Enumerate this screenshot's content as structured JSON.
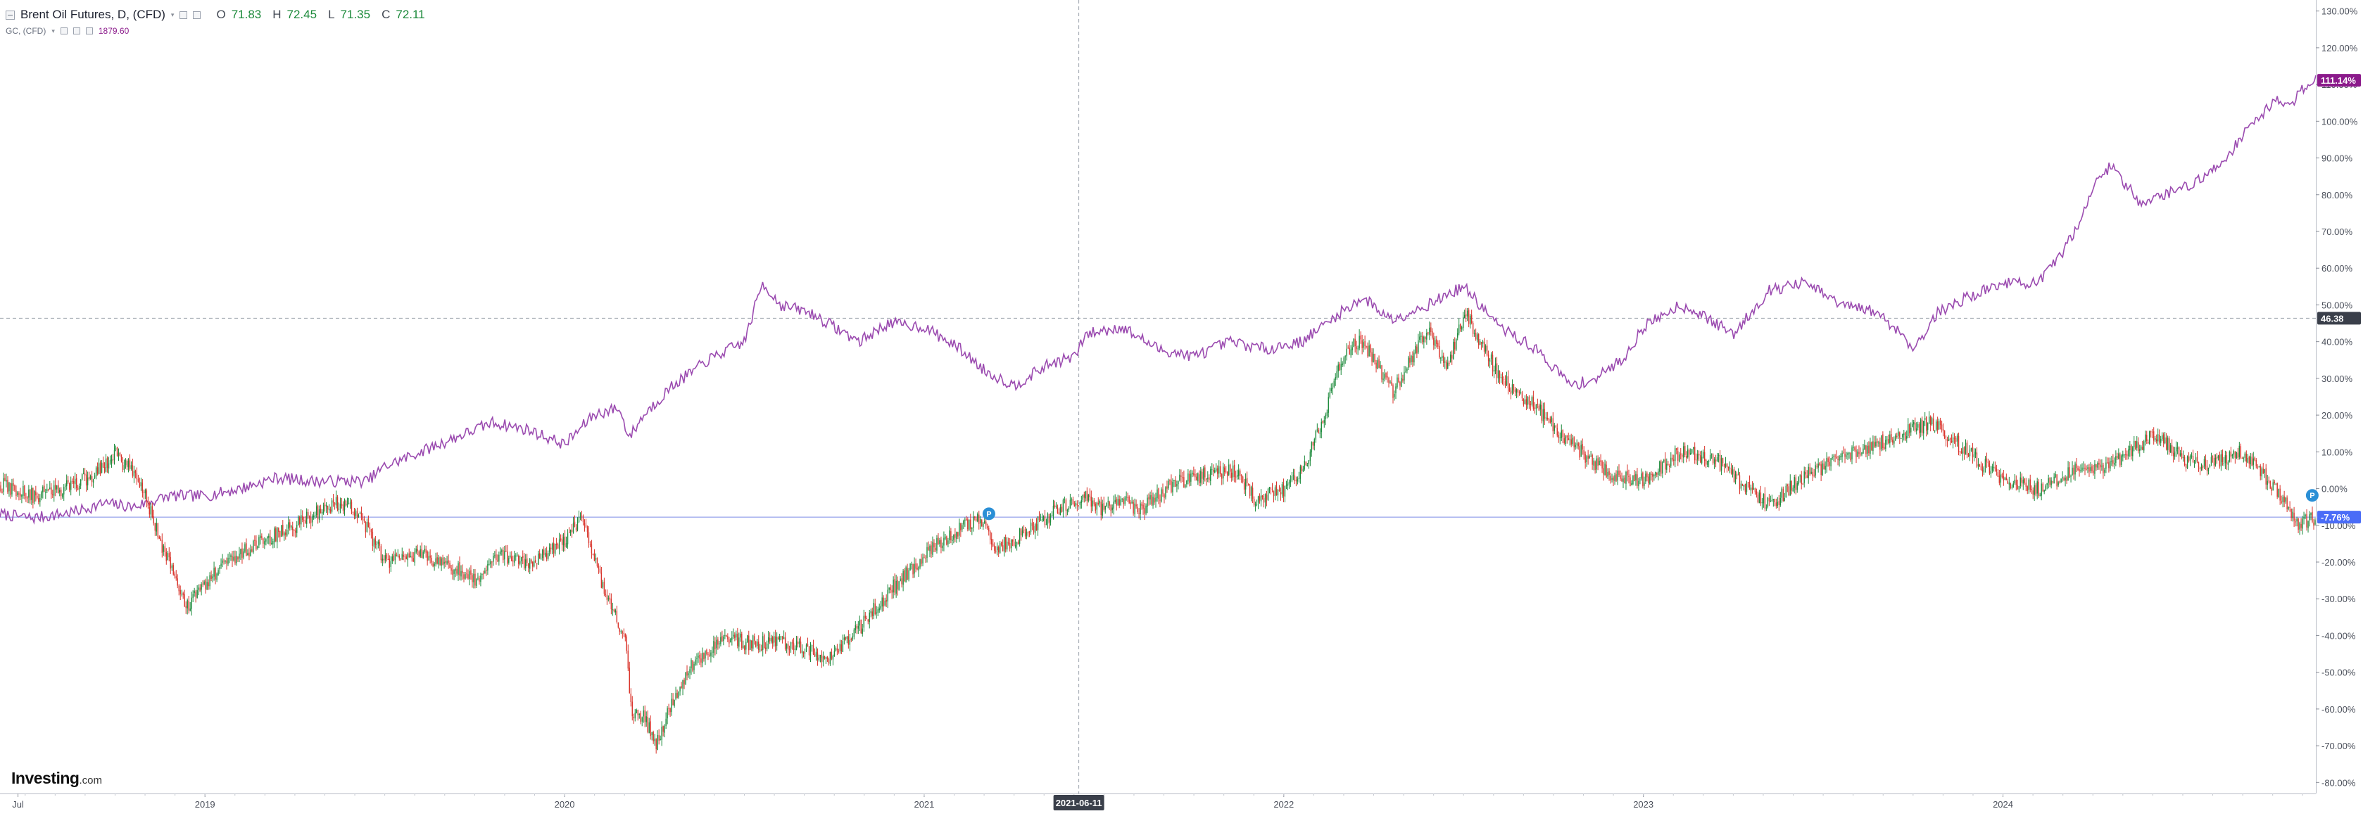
{
  "legend": {
    "symbol": "Brent Oil Futures, D, (CFD)",
    "caret": "▾",
    "open_label": "O",
    "open": "71.83",
    "high_label": "H",
    "high": "72.45",
    "low_label": "L",
    "low": "71.35",
    "close_label": "C",
    "close": "72.11",
    "compare_symbol": "GC, (CFD)",
    "compare_value": "1879.60"
  },
  "logo": {
    "brand": "Investing",
    "suffix": ".com"
  },
  "crosshair": {
    "date_label": "2021-06-11",
    "y_value": 46.38,
    "y_label": "46.38"
  },
  "colors": {
    "up": "#1c8a3b",
    "down": "#d9342b",
    "compare_line": "#9b4bb0",
    "baseline": "#5b6ee1",
    "compare_badge": "#8b1a8b",
    "baseline_badge": "#4a6cf7",
    "cross_badge": "#3a3f4a"
  },
  "chart_data": [
    {
      "type": "line",
      "title": "Brent Oil Futures, D, (CFD)",
      "y_format": "percent",
      "ylim": [
        -83,
        133
      ],
      "y_ticks": [
        130,
        120,
        110,
        100,
        90,
        80,
        70,
        60,
        50,
        40,
        30,
        20,
        10,
        0,
        -10,
        -20,
        -30,
        -40,
        -50,
        -60,
        -70,
        -80
      ],
      "y_tick_labels": [
        "130.00%",
        "120.00%",
        "110.00%",
        "100.00%",
        "90.00%",
        "80.00%",
        "70.00%",
        "60.00%",
        "50.00%",
        "40.00%",
        "30.00%",
        "20.00%",
        "10.00%",
        "0.00%",
        "-10.00%",
        "-20.00%",
        "-30.00%",
        "-40.00%",
        "-50.00%",
        "-60.00%",
        "-70.00%",
        "-80.00%"
      ],
      "xlim": [
        2018.43,
        2024.87
      ],
      "x_ticks": [
        2018.48,
        2019.0,
        2020.0,
        2021.0,
        2022.0,
        2023.0,
        2024.0
      ],
      "x_tick_labels": [
        "Jul",
        "2019",
        "2020",
        "2021",
        "2022",
        "2023",
        "2024"
      ],
      "grid": false,
      "series": [
        {
          "name": "Brent Oil Futures, D, (CFD)",
          "style": "candles",
          "last_value": -7.76,
          "last_label": "-7.76%",
          "x": [
            2018.43,
            2018.52,
            2018.6,
            2018.68,
            2018.75,
            2018.82,
            2018.88,
            2018.95,
            2019.05,
            2019.15,
            2019.25,
            2019.35,
            2019.42,
            2019.5,
            2019.6,
            2019.7,
            2019.75,
            2019.8,
            2019.9,
            2020.0,
            2020.05,
            2020.1,
            2020.17,
            2020.18,
            2020.22,
            2020.25,
            2020.3,
            2020.35,
            2020.4,
            2020.45,
            2020.5,
            2020.6,
            2020.68,
            2020.72,
            2020.8,
            2020.85,
            2020.92,
            2021.0,
            2021.08,
            2021.15,
            2021.2,
            2021.25,
            2021.3,
            2021.4,
            2021.45,
            2021.5,
            2021.55,
            2021.6,
            2021.7,
            2021.8,
            2021.86,
            2021.92,
            2022.0,
            2022.05,
            2022.1,
            2022.17,
            2022.22,
            2022.3,
            2022.4,
            2022.45,
            2022.5,
            2022.6,
            2022.7,
            2022.8,
            2022.9,
            2023.0,
            2023.1,
            2023.2,
            2023.25,
            2023.35,
            2023.45,
            2023.55,
            2023.65,
            2023.72,
            2023.8,
            2023.9,
            2024.0,
            2024.1,
            2024.2,
            2024.28,
            2024.35,
            2024.42,
            2024.5,
            2024.55,
            2024.65,
            2024.72,
            2024.78,
            2024.82,
            2024.86
          ],
          "values": [
            1,
            -2,
            0,
            3,
            9,
            2,
            -16,
            -32,
            -20,
            -15,
            -10,
            -4,
            -6,
            -20,
            -18,
            -22,
            -25,
            -18,
            -20,
            -14,
            -8,
            -25,
            -42,
            -60,
            -62,
            -70,
            -58,
            -48,
            -44,
            -40,
            -42,
            -42,
            -44,
            -48,
            -40,
            -34,
            -26,
            -18,
            -12,
            -8,
            -16,
            -14,
            -10,
            -4,
            -2,
            -6,
            -3,
            -6,
            2,
            4,
            5,
            -3,
            0,
            5,
            17,
            38,
            40,
            26,
            44,
            32,
            48,
            30,
            22,
            12,
            4,
            2,
            10,
            8,
            3,
            -5,
            4,
            8,
            12,
            15,
            18,
            10,
            2,
            0,
            5,
            5,
            10,
            15,
            8,
            6,
            10,
            4,
            -3,
            -10,
            -8
          ]
        },
        {
          "name": "GC, (CFD)",
          "style": "line",
          "last_value": 111.14,
          "last_label": "111.14%",
          "x": [
            2018.43,
            2018.52,
            2018.6,
            2018.65,
            2018.72,
            2018.8,
            2018.9,
            2019.0,
            2019.1,
            2019.2,
            2019.3,
            2019.4,
            2019.45,
            2019.5,
            2019.6,
            2019.7,
            2019.8,
            2019.9,
            2020.0,
            2020.08,
            2020.15,
            2020.18,
            2020.22,
            2020.3,
            2020.4,
            2020.5,
            2020.55,
            2020.6,
            2020.68,
            2020.75,
            2020.82,
            2020.9,
            2021.0,
            2021.1,
            2021.17,
            2021.25,
            2021.35,
            2021.42,
            2021.45,
            2021.55,
            2021.65,
            2021.75,
            2021.85,
            2021.95,
            2022.05,
            2022.16,
            2022.22,
            2022.3,
            2022.4,
            2022.5,
            2022.6,
            2022.7,
            2022.8,
            2022.87,
            2022.95,
            2023.0,
            2023.1,
            2023.15,
            2023.25,
            2023.35,
            2023.45,
            2023.55,
            2023.65,
            2023.72,
            2023.75,
            2023.82,
            2023.9,
            2024.0,
            2024.1,
            2024.15,
            2024.2,
            2024.25,
            2024.3,
            2024.38,
            2024.45,
            2024.5,
            2024.55,
            2024.62,
            2024.68,
            2024.72,
            2024.76,
            2024.8,
            2024.84,
            2024.87
          ],
          "values": [
            -7,
            -8,
            -7,
            -6,
            -4,
            -5,
            -2,
            -2,
            0,
            3,
            2,
            2,
            2,
            6,
            10,
            14,
            18,
            16,
            12,
            20,
            22,
            14,
            20,
            28,
            35,
            40,
            56,
            50,
            48,
            44,
            40,
            45,
            44,
            38,
            32,
            28,
            34,
            36,
            42,
            44,
            38,
            36,
            40,
            38,
            40,
            48,
            52,
            46,
            50,
            55,
            44,
            38,
            28,
            30,
            36,
            44,
            50,
            48,
            42,
            54,
            56,
            50,
            48,
            42,
            38,
            48,
            52,
            56,
            56,
            62,
            70,
            82,
            88,
            78,
            80,
            82,
            84,
            90,
            98,
            102,
            106,
            104,
            110,
            111.14
          ]
        }
      ]
    }
  ]
}
